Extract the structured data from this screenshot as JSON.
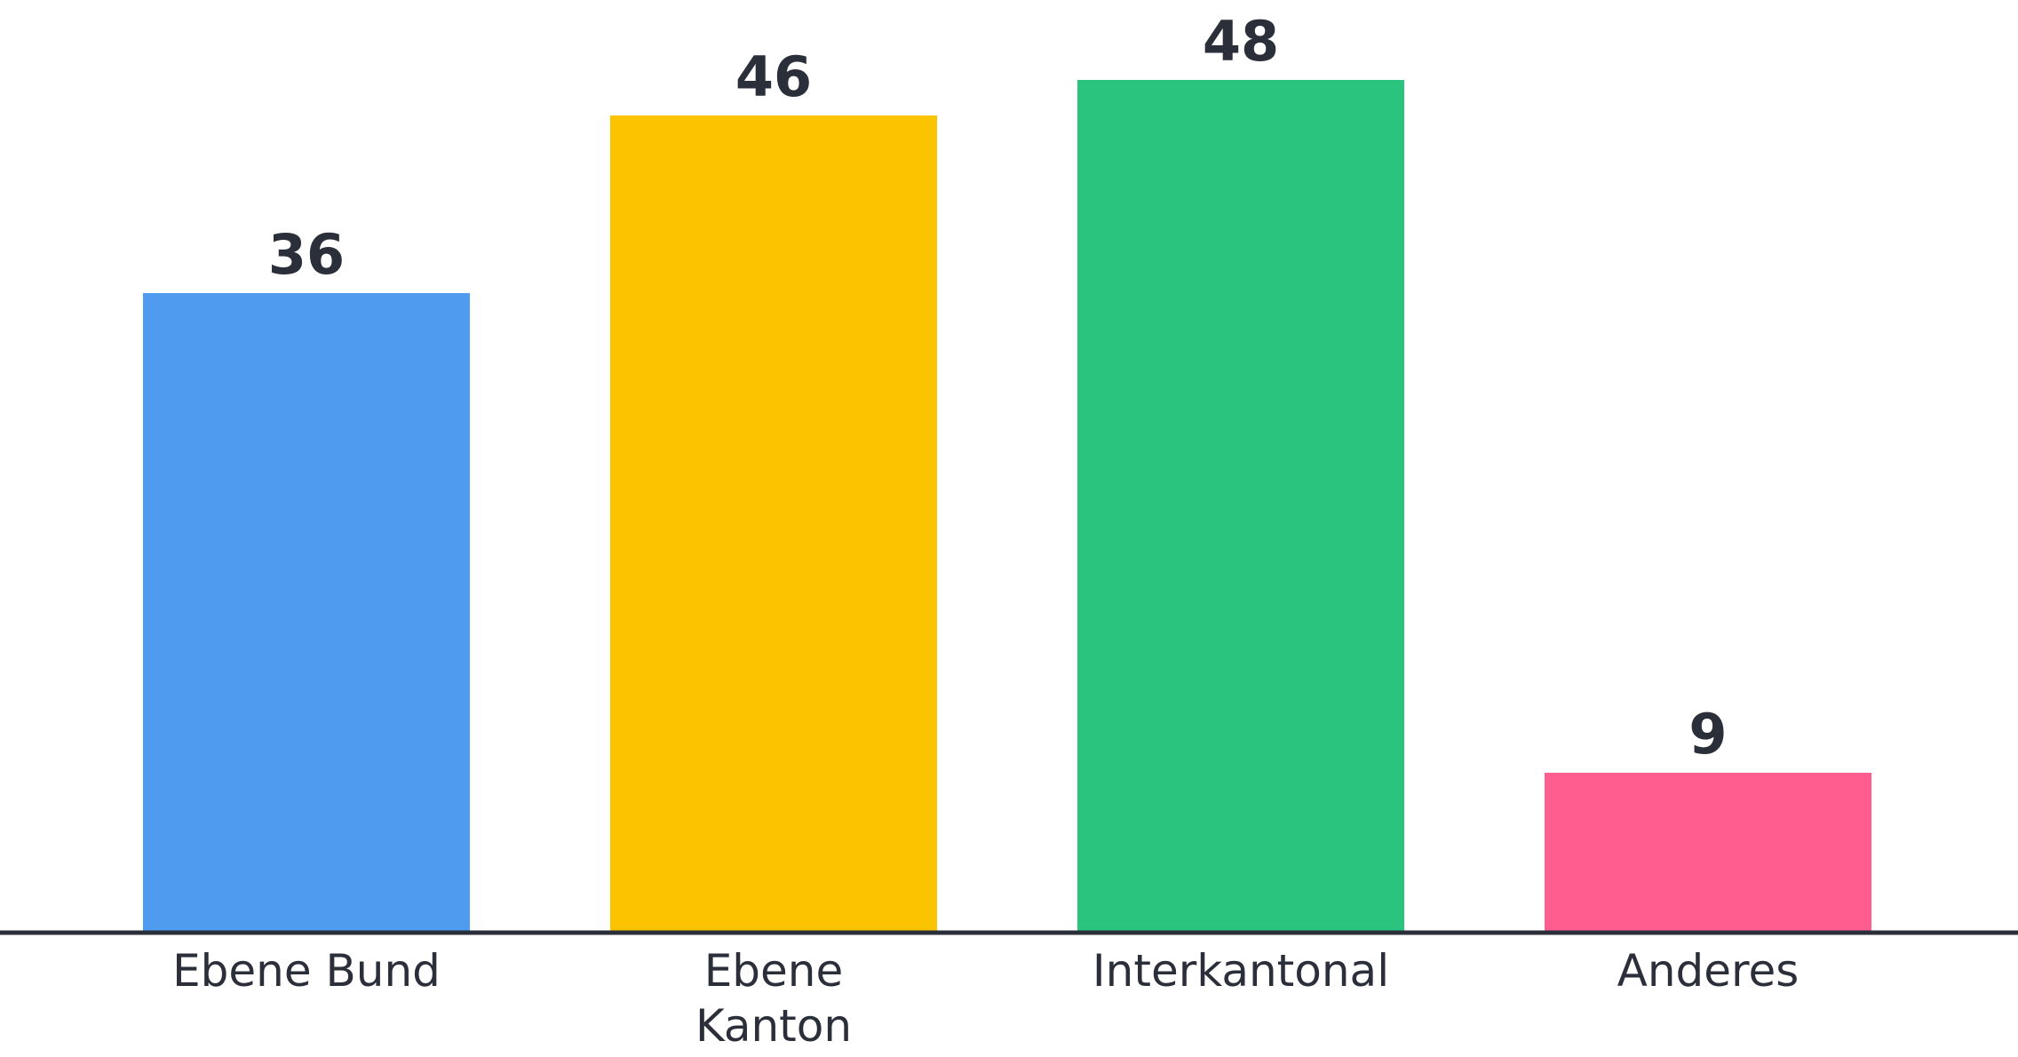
{
  "chart_data": {
    "type": "bar",
    "title": "",
    "xlabel": "",
    "ylabel": "",
    "categories": [
      "Ebene Bund",
      "Ebene\nKanton",
      "Interkantonal",
      "Anderes"
    ],
    "values": [
      36,
      46,
      48,
      9
    ],
    "ylim": [
      0,
      52
    ],
    "colors": [
      "#4f9bef",
      "#fcc400",
      "#2bc47f",
      "#ff5c8f"
    ],
    "grid": false,
    "legend": "none",
    "data_labels": true
  }
}
